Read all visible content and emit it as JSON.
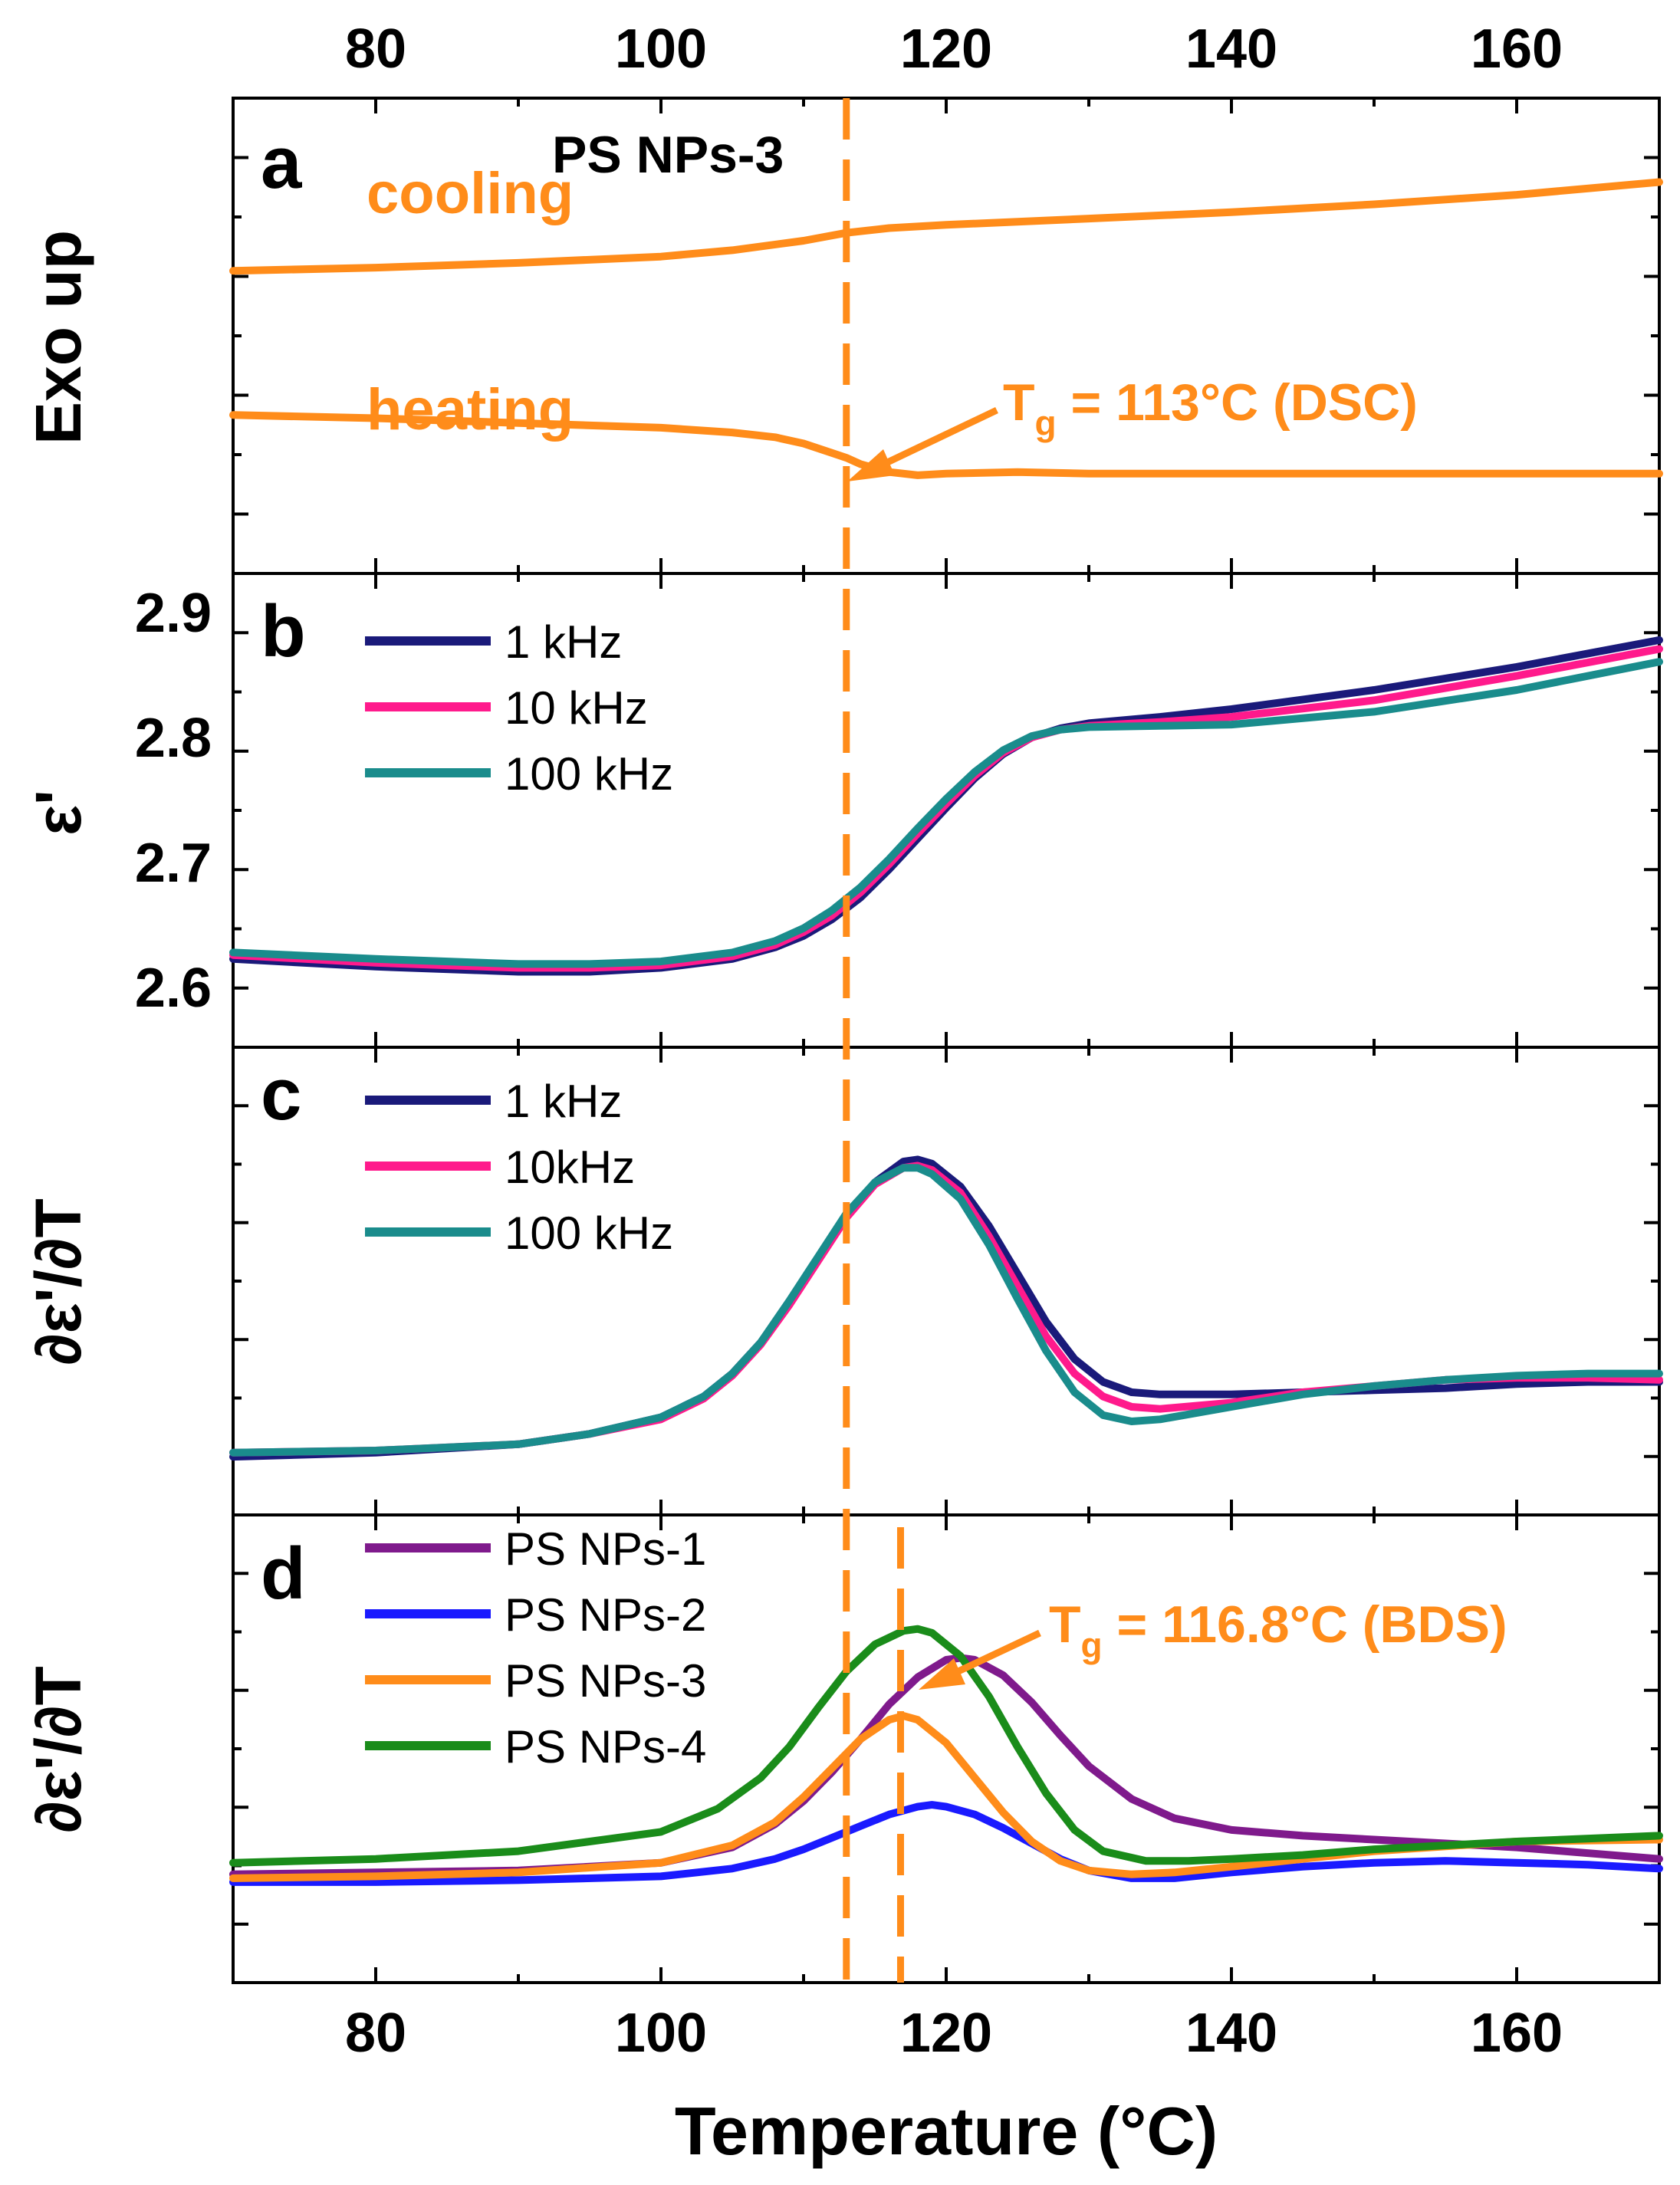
{
  "chart_data": [
    {
      "type": "line",
      "panel": "a",
      "ylabel": "Exo up",
      "xlim": [
        70,
        170
      ],
      "top_tick_labels": [
        "80",
        "100",
        "120",
        "140",
        "160"
      ],
      "title": "PS NPs-3",
      "color": "#ff8c1a",
      "series": [
        {
          "name": "cooling",
          "x": [
            70,
            80,
            90,
            100,
            105,
            110,
            113,
            116,
            120,
            130,
            140,
            150,
            160,
            170
          ],
          "y": [
            0.36,
            0.38,
            0.41,
            0.45,
            0.49,
            0.55,
            0.6,
            0.63,
            0.65,
            0.69,
            0.73,
            0.78,
            0.84,
            0.92
          ]
        },
        {
          "name": "heating",
          "x": [
            70,
            80,
            90,
            100,
            105,
            108,
            110,
            112,
            113,
            114,
            116,
            118,
            120,
            125,
            130,
            140,
            150,
            160,
            170
          ],
          "y": [
            -0.55,
            -0.57,
            -0.6,
            -0.63,
            -0.66,
            -0.69,
            -0.73,
            -0.79,
            -0.82,
            -0.86,
            -0.91,
            -0.93,
            -0.92,
            -0.91,
            -0.92,
            -0.92,
            -0.92,
            -0.92,
            -0.92
          ]
        }
      ],
      "annotation": {
        "text": "T",
        "subscript": "g",
        "suffix": " = 113°C (DSC)"
      }
    },
    {
      "type": "line",
      "panel": "b",
      "ylabel": "ε'",
      "xlim": [
        70,
        170
      ],
      "ylim": [
        2.555,
        2.925
      ],
      "yticks": [
        2.6,
        2.7,
        2.8,
        2.9
      ],
      "ytick_labels": [
        "2.6",
        "2.7",
        "2.8",
        "2.9"
      ],
      "series": [
        {
          "name": "1 kHz",
          "color": "#1a1a7a",
          "x": [
            70,
            80,
            90,
            95,
            100,
            105,
            108,
            110,
            112,
            114,
            116,
            118,
            120,
            122,
            124,
            126,
            128,
            130,
            135,
            140,
            150,
            160,
            170
          ],
          "y": [
            2.624,
            2.618,
            2.614,
            2.614,
            2.617,
            2.624,
            2.633,
            2.642,
            2.655,
            2.672,
            2.694,
            2.718,
            2.742,
            2.765,
            2.784,
            2.797,
            2.804,
            2.808,
            2.813,
            2.819,
            2.834,
            2.852,
            2.873
          ]
        },
        {
          "name": "10 kHz",
          "color": "#ff1a8c",
          "x": [
            70,
            80,
            90,
            95,
            100,
            105,
            108,
            110,
            112,
            114,
            116,
            118,
            120,
            122,
            124,
            126,
            128,
            130,
            135,
            140,
            150,
            160,
            170
          ],
          "y": [
            2.627,
            2.621,
            2.617,
            2.617,
            2.619,
            2.626,
            2.635,
            2.645,
            2.658,
            2.676,
            2.698,
            2.722,
            2.745,
            2.767,
            2.785,
            2.797,
            2.803,
            2.806,
            2.809,
            2.813,
            2.826,
            2.845,
            2.866
          ]
        },
        {
          "name": "100 kHz",
          "color": "#1a8c8c",
          "x": [
            70,
            80,
            90,
            95,
            100,
            105,
            108,
            110,
            112,
            114,
            116,
            118,
            120,
            122,
            124,
            126,
            128,
            130,
            135,
            140,
            150,
            160,
            170
          ],
          "y": [
            2.629,
            2.624,
            2.62,
            2.62,
            2.622,
            2.629,
            2.638,
            2.648,
            2.662,
            2.68,
            2.702,
            2.726,
            2.749,
            2.77,
            2.787,
            2.798,
            2.803,
            2.805,
            2.806,
            2.807,
            2.817,
            2.834,
            2.856
          ]
        }
      ]
    },
    {
      "type": "line",
      "panel": "c",
      "ylabel": "∂ε'/∂T",
      "xlim": [
        70,
        170
      ],
      "series": [
        {
          "name": "1 kHz",
          "color": "#1a1a7a",
          "x": [
            70,
            80,
            90,
            95,
            100,
            103,
            105,
            107,
            109,
            111,
            113,
            115,
            117,
            118,
            119,
            121,
            123,
            125,
            127,
            129,
            131,
            133,
            135,
            140,
            145,
            150,
            155,
            160,
            165,
            170
          ],
          "y": [
            0.03,
            0.05,
            0.09,
            0.14,
            0.22,
            0.32,
            0.43,
            0.58,
            0.77,
            0.98,
            1.19,
            1.35,
            1.45,
            1.46,
            1.44,
            1.33,
            1.14,
            0.91,
            0.68,
            0.5,
            0.39,
            0.34,
            0.33,
            0.33,
            0.34,
            0.35,
            0.36,
            0.38,
            0.39,
            0.39
          ]
        },
        {
          "name": "10kHz",
          "color": "#ff1a8c",
          "x": [
            70,
            80,
            90,
            95,
            100,
            103,
            105,
            107,
            109,
            111,
            113,
            115,
            117,
            118,
            119,
            121,
            123,
            125,
            127,
            129,
            131,
            133,
            135,
            140,
            145,
            150,
            155,
            160,
            165,
            170
          ],
          "y": [
            0.05,
            0.06,
            0.09,
            0.14,
            0.21,
            0.31,
            0.42,
            0.57,
            0.76,
            0.97,
            1.18,
            1.34,
            1.42,
            1.43,
            1.41,
            1.3,
            1.09,
            0.85,
            0.61,
            0.43,
            0.32,
            0.27,
            0.26,
            0.29,
            0.34,
            0.37,
            0.4,
            0.41,
            0.41,
            0.4
          ]
        },
        {
          "name": "100 kHz",
          "color": "#1a8c8c",
          "x": [
            70,
            80,
            90,
            95,
            100,
            103,
            105,
            107,
            109,
            111,
            113,
            115,
            117,
            118,
            119,
            121,
            123,
            125,
            127,
            129,
            131,
            133,
            135,
            140,
            145,
            150,
            155,
            160,
            165,
            170
          ],
          "y": [
            0.05,
            0.06,
            0.09,
            0.14,
            0.22,
            0.32,
            0.43,
            0.58,
            0.78,
            0.99,
            1.2,
            1.35,
            1.42,
            1.42,
            1.39,
            1.27,
            1.05,
            0.79,
            0.54,
            0.34,
            0.23,
            0.2,
            0.21,
            0.27,
            0.33,
            0.37,
            0.4,
            0.42,
            0.43,
            0.43
          ]
        }
      ]
    },
    {
      "type": "line",
      "panel": "d",
      "ylabel": "∂ε'/∂T",
      "xlim": [
        70,
        170
      ],
      "xlabel": "Temperature (°C)",
      "xticks": [
        80,
        100,
        120,
        140,
        160
      ],
      "xtick_labels": [
        "80",
        "100",
        "120",
        "140",
        "160"
      ],
      "series": [
        {
          "name": "PS NPs-1",
          "color": "#7f1a8c",
          "x": [
            70,
            80,
            90,
            100,
            105,
            108,
            110,
            112,
            114,
            116,
            118,
            120,
            121,
            122,
            124,
            126,
            128,
            130,
            133,
            136,
            140,
            145,
            150,
            160,
            170
          ],
          "y": [
            0.06,
            0.07,
            0.08,
            0.12,
            0.2,
            0.32,
            0.44,
            0.59,
            0.76,
            0.94,
            1.08,
            1.17,
            1.18,
            1.17,
            1.09,
            0.95,
            0.78,
            0.62,
            0.45,
            0.35,
            0.29,
            0.26,
            0.24,
            0.2,
            0.14
          ]
        },
        {
          "name": "PS NPs-2",
          "color": "#1a1aff",
          "x": [
            70,
            80,
            90,
            100,
            105,
            108,
            110,
            112,
            114,
            116,
            118,
            119,
            120,
            122,
            124,
            126,
            128,
            130,
            133,
            136,
            140,
            145,
            150,
            155,
            160,
            165,
            170
          ],
          "y": [
            0.02,
            0.02,
            0.03,
            0.05,
            0.09,
            0.14,
            0.19,
            0.25,
            0.31,
            0.37,
            0.41,
            0.42,
            0.41,
            0.37,
            0.3,
            0.22,
            0.14,
            0.08,
            0.04,
            0.04,
            0.07,
            0.1,
            0.12,
            0.13,
            0.12,
            0.11,
            0.09
          ]
        },
        {
          "name": "PS NPs-3",
          "color": "#ff8c1a",
          "x": [
            70,
            80,
            90,
            100,
            105,
            108,
            110,
            112,
            114,
            116,
            117,
            118,
            120,
            122,
            124,
            126,
            128,
            130,
            133,
            136,
            140,
            145,
            150,
            160,
            170
          ],
          "y": [
            0.04,
            0.05,
            0.07,
            0.12,
            0.21,
            0.33,
            0.46,
            0.61,
            0.76,
            0.86,
            0.88,
            0.86,
            0.74,
            0.56,
            0.38,
            0.23,
            0.13,
            0.08,
            0.06,
            0.07,
            0.1,
            0.14,
            0.18,
            0.23,
            0.24
          ]
        },
        {
          "name": "PS NPs-4",
          "color": "#1a8c1a",
          "x": [
            70,
            80,
            90,
            100,
            104,
            107,
            109,
            111,
            113,
            115,
            117,
            118,
            119,
            121,
            123,
            125,
            127,
            129,
            131,
            134,
            137,
            140,
            145,
            150,
            160,
            170
          ],
          "y": [
            0.12,
            0.14,
            0.18,
            0.28,
            0.4,
            0.56,
            0.72,
            0.92,
            1.11,
            1.25,
            1.32,
            1.33,
            1.31,
            1.19,
            0.98,
            0.72,
            0.48,
            0.29,
            0.18,
            0.13,
            0.13,
            0.14,
            0.16,
            0.19,
            0.23,
            0.26
          ]
        }
      ],
      "annotation": {
        "text": "T",
        "subscript": "g",
        "suffix": " = 116.8°C (BDS)"
      }
    }
  ],
  "reference_lines": {
    "dsc_tg": 113,
    "bds_tg": 116.8,
    "color": "#ff8c1a"
  }
}
